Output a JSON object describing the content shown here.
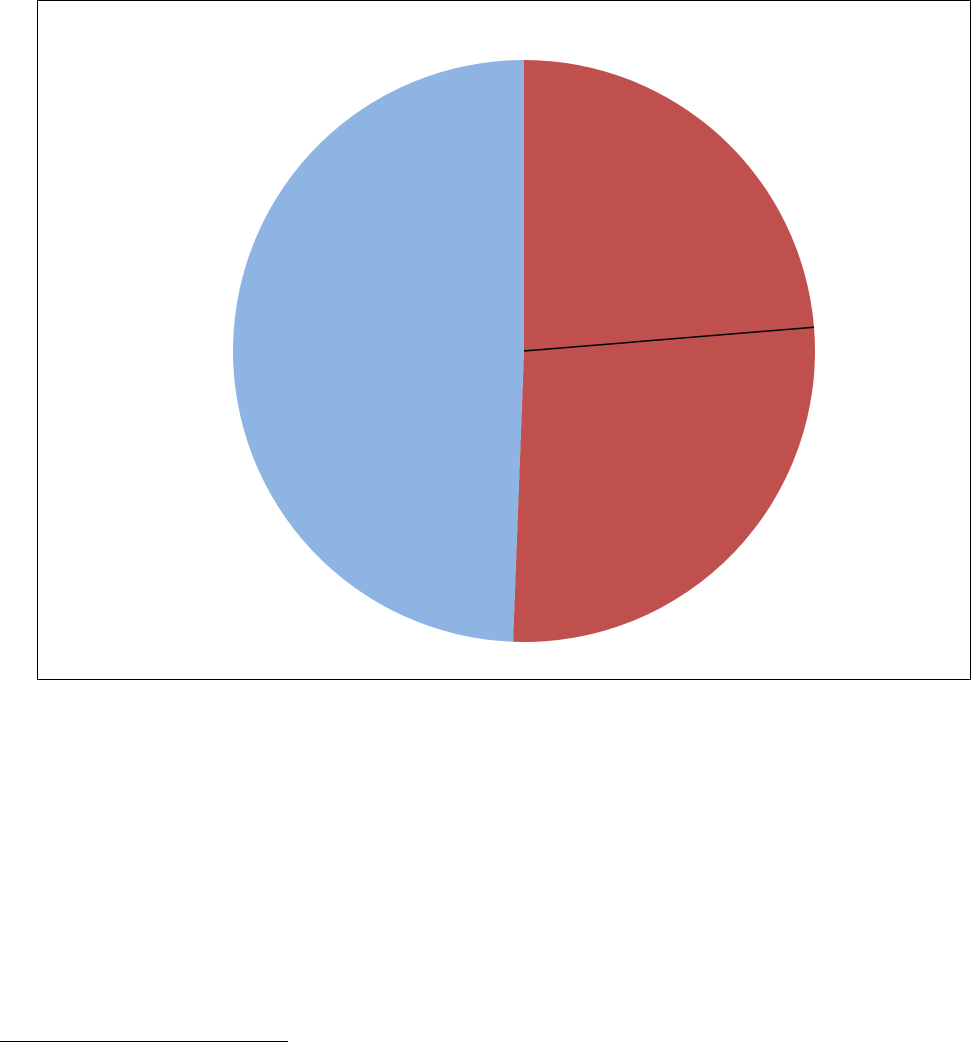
{
  "chart_data": {
    "type": "pie",
    "title": "",
    "legend": "none",
    "start_angle_deg": 0,
    "direction": "clockwise",
    "slices": [
      {
        "value": 23.7,
        "color": "#C0504D"
      },
      {
        "value": 26.9,
        "color": "#C0504D"
      },
      {
        "value": 49.4,
        "color": "#8EB4E3"
      }
    ],
    "divider_color": "#000000"
  }
}
